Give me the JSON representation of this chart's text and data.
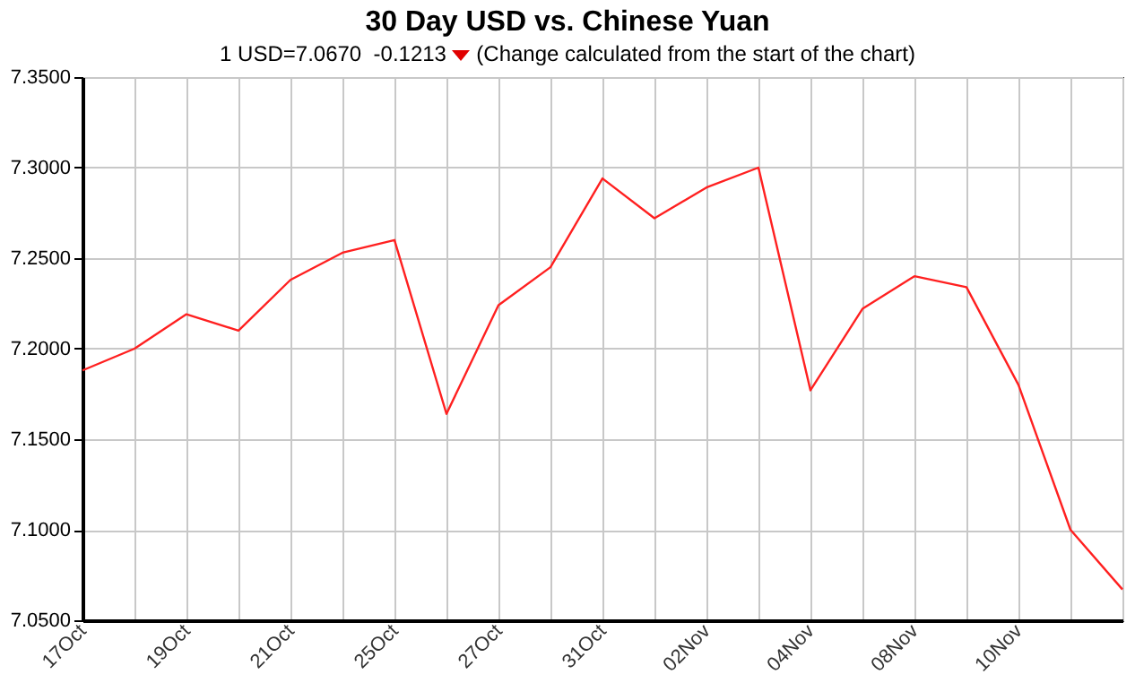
{
  "chart_data": {
    "type": "line",
    "title": "30 Day USD vs. Chinese Yuan",
    "subtitle": "1 USD=7.0670  -0.1213",
    "annotations": [
      "(Change calculated from the start of the chart)"
    ],
    "categories": [
      "17Oct",
      null,
      "19Oct",
      null,
      "21Oct",
      null,
      "25Oct",
      null,
      "27Oct",
      null,
      "31Oct",
      null,
      "02Nov",
      null,
      "04Nov",
      null,
      "08Nov",
      null,
      "10Nov",
      null,
      null
    ],
    "series": [
      {
        "color": "#ff2020",
        "values": [
          7.188,
          7.2,
          7.219,
          7.21,
          7.238,
          7.253,
          7.26,
          7.164,
          7.224,
          7.245,
          7.294,
          7.272,
          7.289,
          7.3,
          7.177,
          7.222,
          7.24,
          7.234,
          7.18,
          7.1,
          7.067
        ]
      }
    ],
    "ylim": [
      7.05,
      7.35
    ],
    "yticks": [
      {
        "value": 7.05,
        "label": "7.0500"
      },
      {
        "value": 7.1,
        "label": "7.1000"
      },
      {
        "value": 7.15,
        "label": "7.1500"
      },
      {
        "value": 7.2,
        "label": "7.2000"
      },
      {
        "value": 7.25,
        "label": "7.2500"
      },
      {
        "value": 7.3,
        "label": "7.3000"
      },
      {
        "value": 7.35,
        "label": "7.3500"
      }
    ],
    "grid": true,
    "marker": "none",
    "line_style": "solid"
  }
}
